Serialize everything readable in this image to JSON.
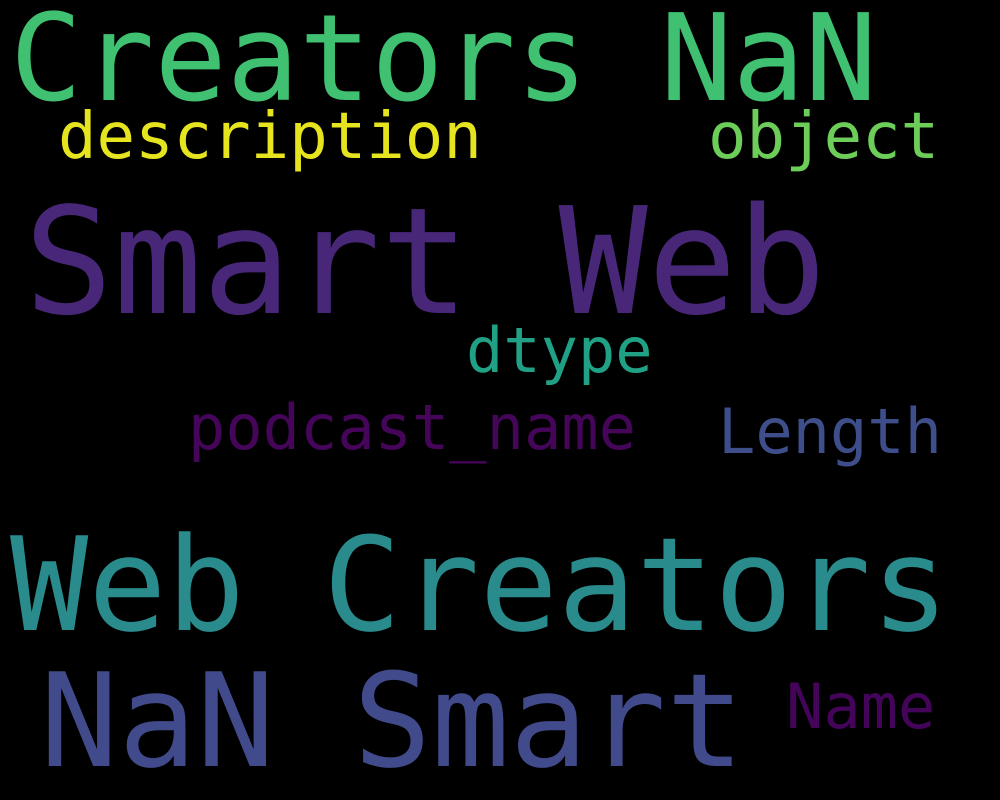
{
  "words": [
    {
      "text": "Creators NaN",
      "color": "#40c171"
    },
    {
      "text": "Smart Web",
      "color": "#482778"
    },
    {
      "text": "Web Creators",
      "color": "#2a8b8c"
    },
    {
      "text": "NaN Smart",
      "color": "#414a8a"
    },
    {
      "text": "description",
      "color": "#e5e41f"
    },
    {
      "text": "object",
      "color": "#6cce59"
    },
    {
      "text": "dtype",
      "color": "#20a185"
    },
    {
      "text": "podcast_name",
      "color": "#450559"
    },
    {
      "text": "Length",
      "color": "#3d4e8a"
    },
    {
      "text": "Name",
      "color": "#44045a"
    }
  ]
}
